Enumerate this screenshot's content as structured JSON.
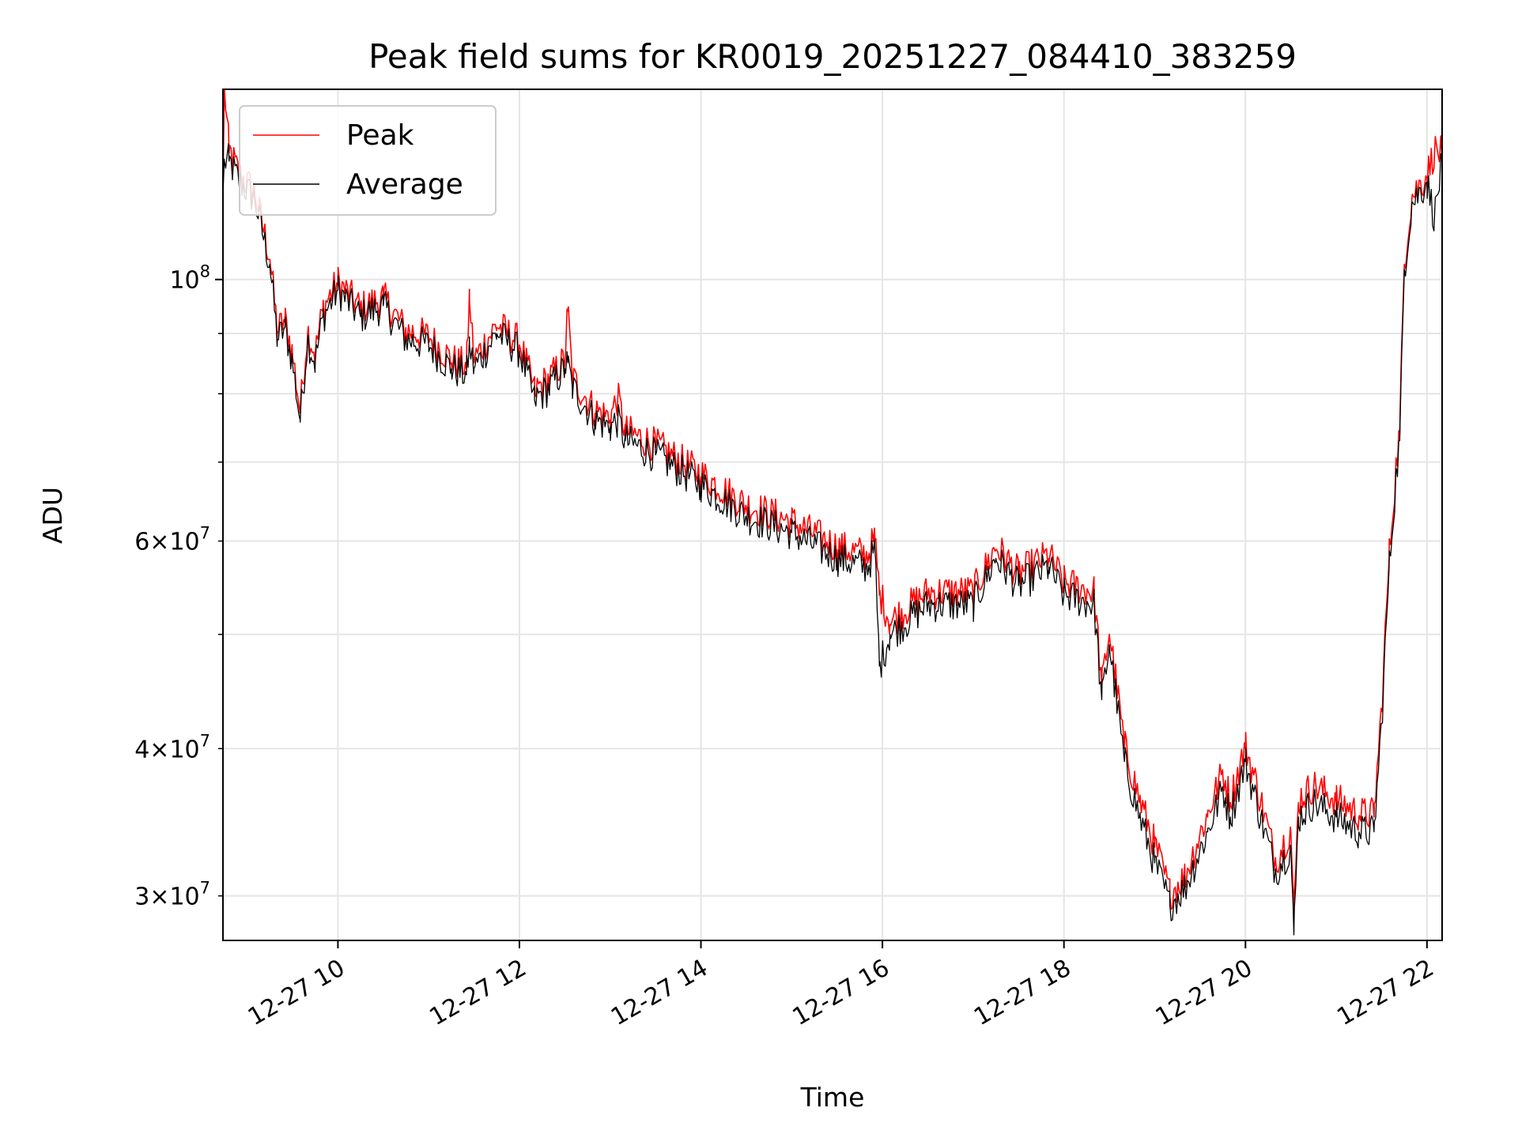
{
  "chart_data": {
    "type": "line",
    "title": "Peak field sums for KR0019_20251227_084410_383259",
    "xlabel": "Time",
    "ylabel": "ADU",
    "yscale": "log",
    "grid": true,
    "legend_position": "top-left",
    "xlim": [
      "2025-12-27 08:44",
      "2025-12-27 22:10"
    ],
    "ylim": [
      27500000,
      145000000
    ],
    "x_ticks": [
      {
        "value": "2025-12-27 10:00",
        "label": "12-27 10"
      },
      {
        "value": "2025-12-27 12:00",
        "label": "12-27 12"
      },
      {
        "value": "2025-12-27 14:00",
        "label": "12-27 14"
      },
      {
        "value": "2025-12-27 16:00",
        "label": "12-27 16"
      },
      {
        "value": "2025-12-27 18:00",
        "label": "12-27 18"
      },
      {
        "value": "2025-12-27 20:00",
        "label": "12-27 20"
      },
      {
        "value": "2025-12-27 22:00",
        "label": "12-27 22"
      }
    ],
    "y_major_ticks": [
      {
        "value": 100000000,
        "base": "10",
        "exp": "8"
      }
    ],
    "y_minor_ticks": [
      {
        "value": 30000000,
        "coef": "3",
        "base": "10",
        "exp": "7"
      },
      {
        "value": 40000000,
        "coef": "4",
        "base": "10",
        "exp": "7"
      },
      {
        "value": 60000000,
        "coef": "6",
        "base": "10",
        "exp": "7"
      },
      {
        "value": 50000000
      },
      {
        "value": 70000000
      },
      {
        "value": 80000000
      },
      {
        "value": 90000000
      }
    ],
    "series": [
      {
        "name": "Peak",
        "color": "#ff0000",
        "x": [
          "2025-12-27 08:44",
          "2025-12-27 08:45",
          "2025-12-27 08:48",
          "2025-12-27 08:55",
          "2025-12-27 09:05",
          "2025-12-27 09:15",
          "2025-12-27 09:20",
          "2025-12-27 09:25",
          "2025-12-27 09:30",
          "2025-12-27 09:35",
          "2025-12-27 09:40",
          "2025-12-27 09:45",
          "2025-12-27 09:50",
          "2025-12-27 10:00",
          "2025-12-27 10:15",
          "2025-12-27 10:30",
          "2025-12-27 10:45",
          "2025-12-27 11:00",
          "2025-12-27 11:15",
          "2025-12-27 11:25",
          "2025-12-27 11:27",
          "2025-12-27 11:30",
          "2025-12-27 11:45",
          "2025-12-27 12:00",
          "2025-12-27 12:10",
          "2025-12-27 12:20",
          "2025-12-27 12:30",
          "2025-12-27 12:32",
          "2025-12-27 12:35",
          "2025-12-27 12:50",
          "2025-12-27 13:00",
          "2025-12-27 13:05",
          "2025-12-27 13:10",
          "2025-12-27 13:30",
          "2025-12-27 14:00",
          "2025-12-27 14:30",
          "2025-12-27 15:00",
          "2025-12-27 15:30",
          "2025-12-27 15:50",
          "2025-12-27 15:55",
          "2025-12-27 15:58",
          "2025-12-27 16:05",
          "2025-12-27 16:30",
          "2025-12-27 17:00",
          "2025-12-27 17:15",
          "2025-12-27 17:30",
          "2025-12-27 17:50",
          "2025-12-27 18:00",
          "2025-12-27 18:20",
          "2025-12-27 18:25",
          "2025-12-27 18:30",
          "2025-12-27 18:40",
          "2025-12-27 18:50",
          "2025-12-27 19:00",
          "2025-12-27 19:10",
          "2025-12-27 19:20",
          "2025-12-27 19:35",
          "2025-12-27 19:45",
          "2025-12-27 19:50",
          "2025-12-27 20:00",
          "2025-12-27 20:10",
          "2025-12-27 20:20",
          "2025-12-27 20:30",
          "2025-12-27 20:32",
          "2025-12-27 20:35",
          "2025-12-27 20:45",
          "2025-12-27 21:00",
          "2025-12-27 21:15",
          "2025-12-27 21:25",
          "2025-12-27 21:30",
          "2025-12-27 21:35",
          "2025-12-27 21:40",
          "2025-12-27 21:42",
          "2025-12-27 21:45",
          "2025-12-27 21:50",
          "2025-12-27 22:00",
          "2025-12-27 22:05",
          "2025-12-27 22:10"
        ],
        "y": [
          120000000,
          145000000,
          128000000,
          122000000,
          118000000,
          104000000,
          90000000,
          92000000,
          86000000,
          77000000,
          90000000,
          86000000,
          94000000,
          99000000,
          94000000,
          96000000,
          90000000,
          89000000,
          85000000,
          84000000,
          96000000,
          85000000,
          91000000,
          88000000,
          80000000,
          82000000,
          85000000,
          94000000,
          82000000,
          77000000,
          76000000,
          79000000,
          74000000,
          72000000,
          68000000,
          64000000,
          62000000,
          59000000,
          58000000,
          60000000,
          54000000,
          51000000,
          54000000,
          54000000,
          59000000,
          56000000,
          58000000,
          55000000,
          54000000,
          45000000,
          50000000,
          40000000,
          36000000,
          33000000,
          30000000,
          31000000,
          35000000,
          38000000,
          36000000,
          40000000,
          36000000,
          32000000,
          34000000,
          28500000,
          36000000,
          37000000,
          36000000,
          35000000,
          35000000,
          43000000,
          58000000,
          70000000,
          74000000,
          103000000,
          117000000,
          122000000,
          128000000,
          127000000
        ]
      },
      {
        "name": "Average",
        "color": "#000000",
        "x": [
          "2025-12-27 08:44",
          "2025-12-27 08:45",
          "2025-12-27 08:48",
          "2025-12-27 08:55",
          "2025-12-27 09:05",
          "2025-12-27 09:15",
          "2025-12-27 09:20",
          "2025-12-27 09:25",
          "2025-12-27 09:30",
          "2025-12-27 09:35",
          "2025-12-27 09:40",
          "2025-12-27 09:45",
          "2025-12-27 09:50",
          "2025-12-27 10:00",
          "2025-12-27 10:15",
          "2025-12-27 10:30",
          "2025-12-27 10:45",
          "2025-12-27 11:00",
          "2025-12-27 11:15",
          "2025-12-27 11:25",
          "2025-12-27 11:27",
          "2025-12-27 11:30",
          "2025-12-27 11:45",
          "2025-12-27 12:00",
          "2025-12-27 12:10",
          "2025-12-27 12:20",
          "2025-12-27 12:30",
          "2025-12-27 12:32",
          "2025-12-27 12:35",
          "2025-12-27 12:50",
          "2025-12-27 13:00",
          "2025-12-27 13:05",
          "2025-12-27 13:10",
          "2025-12-27 13:30",
          "2025-12-27 14:00",
          "2025-12-27 14:30",
          "2025-12-27 15:00",
          "2025-12-27 15:30",
          "2025-12-27 15:50",
          "2025-12-27 15:55",
          "2025-12-27 15:58",
          "2025-12-27 16:05",
          "2025-12-27 16:30",
          "2025-12-27 17:00",
          "2025-12-27 17:15",
          "2025-12-27 17:30",
          "2025-12-27 17:50",
          "2025-12-27 18:00",
          "2025-12-27 18:20",
          "2025-12-27 18:25",
          "2025-12-27 18:30",
          "2025-12-27 18:40",
          "2025-12-27 18:50",
          "2025-12-27 19:00",
          "2025-12-27 19:10",
          "2025-12-27 19:20",
          "2025-12-27 19:35",
          "2025-12-27 19:45",
          "2025-12-27 19:50",
          "2025-12-27 20:00",
          "2025-12-27 20:10",
          "2025-12-27 20:20",
          "2025-12-27 20:30",
          "2025-12-27 20:32",
          "2025-12-27 20:35",
          "2025-12-27 20:45",
          "2025-12-27 21:00",
          "2025-12-27 21:15",
          "2025-12-27 21:25",
          "2025-12-27 21:30",
          "2025-12-27 21:35",
          "2025-12-27 21:40",
          "2025-12-27 21:42",
          "2025-12-27 21:45",
          "2025-12-27 21:50",
          "2025-12-27 22:00",
          "2025-12-27 22:05",
          "2025-12-27 22:10"
        ],
        "y": [
          118000000,
          126000000,
          126000000,
          121000000,
          117000000,
          103000000,
          89000000,
          91000000,
          85000000,
          76000000,
          89000000,
          85000000,
          93000000,
          98000000,
          93000000,
          95000000,
          89000000,
          88000000,
          84000000,
          83000000,
          88000000,
          84000000,
          90000000,
          87000000,
          79000000,
          81000000,
          84000000,
          85000000,
          81000000,
          76000000,
          75000000,
          76000000,
          73000000,
          71000000,
          67000000,
          63000000,
          61000000,
          58000000,
          57000000,
          59000000,
          47000000,
          50000000,
          53000000,
          53000000,
          58000000,
          55000000,
          57000000,
          54000000,
          53000000,
          44000000,
          49000000,
          39000000,
          35000000,
          32000000,
          29500000,
          30500000,
          34000000,
          37000000,
          35000000,
          39000000,
          35000000,
          31500000,
          33000000,
          27800000,
          35000000,
          36000000,
          35000000,
          34000000,
          34000000,
          42000000,
          57000000,
          69000000,
          73000000,
          102000000,
          116000000,
          121000000,
          113000000,
          126000000
        ]
      }
    ]
  }
}
